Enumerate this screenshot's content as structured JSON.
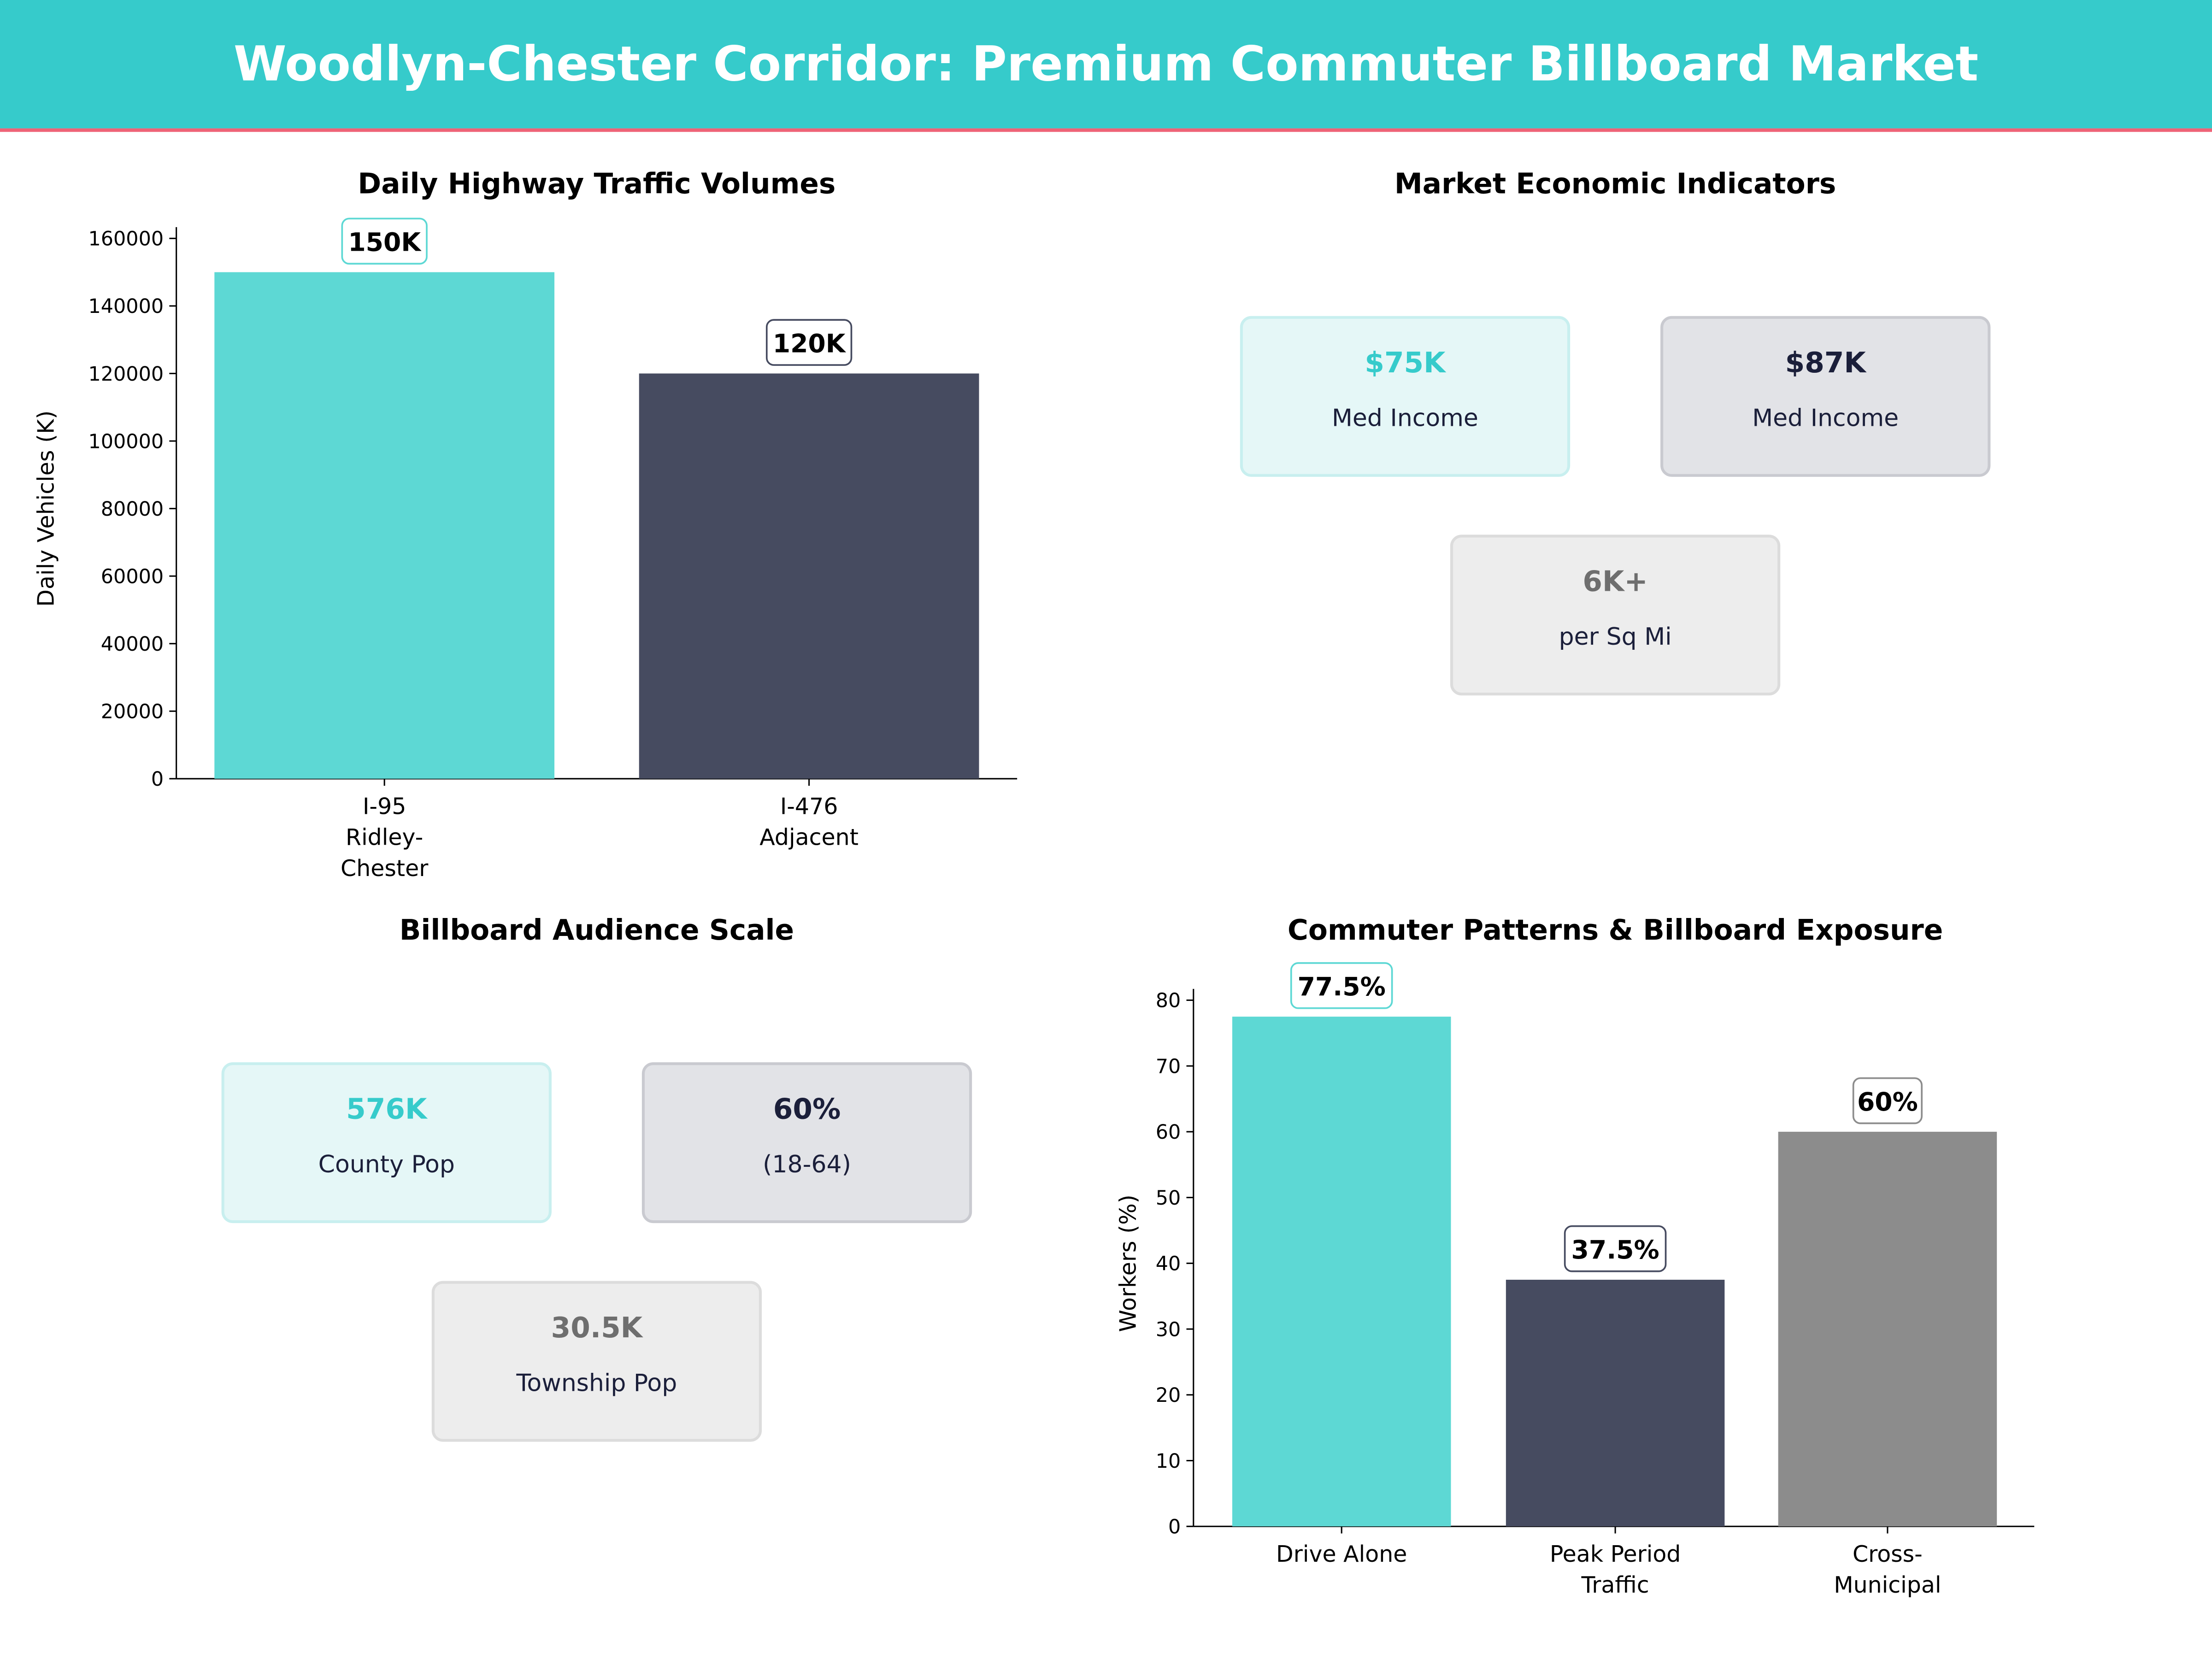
{
  "header": {
    "title": "Woodlyn-Chester Corridor: Premium Commuter Billboard Market",
    "bg": "#36CBCB",
    "accent_line": "#EE6377"
  },
  "chart_data": [
    {
      "type": "bar",
      "title": "Daily Highway Traffic Volumes",
      "ylabel": "Daily Vehicles (K)",
      "xlabel": "",
      "categories": [
        [
          "I-95",
          "Ridley-",
          "Chester"
        ],
        [
          "I-476",
          "Adjacent"
        ]
      ],
      "values": [
        150000,
        120000
      ],
      "data_labels": [
        "150K",
        "120K"
      ],
      "colors": [
        "#5DD8D4",
        "#464B60"
      ],
      "ylim": [
        0,
        160000
      ],
      "yticks": [
        "0",
        "20000",
        "40000",
        "60000",
        "80000",
        "100000",
        "120000",
        "140000",
        "160000"
      ],
      "grid": false
    },
    {
      "type": "table",
      "title": "Market Economic Indicators",
      "cards": [
        {
          "value": "$75K",
          "label": "Med Income",
          "style": "teal"
        },
        {
          "value": "$87K",
          "label": "Med Income",
          "style": "navy"
        },
        {
          "value": "6K+",
          "label": "per Sq Mi",
          "style": "gray"
        }
      ]
    },
    {
      "type": "table",
      "title": "Billboard Audience Scale",
      "cards": [
        {
          "value": "576K",
          "label": "County Pop",
          "style": "teal"
        },
        {
          "value": "60%",
          "label": "(18-64)",
          "style": "navy"
        },
        {
          "value": "30.5K",
          "label": "Township Pop",
          "style": "gray"
        }
      ]
    },
    {
      "type": "bar",
      "title": "Commuter Patterns & Billboard Exposure",
      "ylabel": "Workers (%)",
      "xlabel": "",
      "categories": [
        [
          "Drive Alone"
        ],
        [
          "Peak Period",
          "Traffic"
        ],
        [
          "Cross-",
          "Municipal"
        ]
      ],
      "values": [
        77.5,
        37.5,
        60
      ],
      "data_labels": [
        "77.5%",
        "37.5%",
        "60%"
      ],
      "colors": [
        "#5DD8D4",
        "#464B60",
        "#8C8C8C"
      ],
      "ylim": [
        0,
        80
      ],
      "yticks": [
        "0",
        "10",
        "20",
        "30",
        "40",
        "50",
        "60",
        "70",
        "80"
      ],
      "grid": false
    }
  ]
}
